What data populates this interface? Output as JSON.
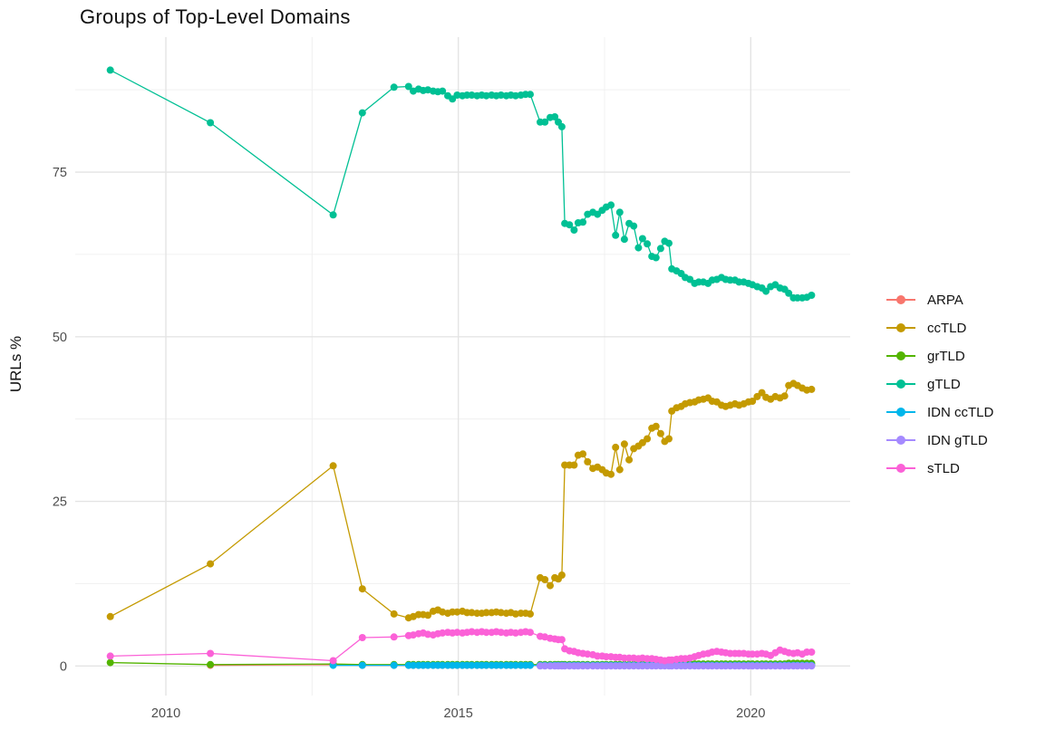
{
  "page": {
    "background": "#ffffff"
  },
  "chart_data": {
    "type": "line",
    "title": "Groups of Top-Level Domains",
    "xlabel": "",
    "ylabel": "URLs %",
    "grid": true,
    "legend_position": "right",
    "colors": {
      "major_grid": "#e4e4e4",
      "minor_grid": "#f0f0f0",
      "tick_label": "#4d4d4d"
    },
    "x_axis": {
      "range": [
        2008.45,
        2021.7
      ],
      "ticks": [
        2010,
        2015,
        2020
      ],
      "tick_labels": [
        "2010",
        "2015",
        "2020"
      ],
      "minor_ticks": [
        2012.5,
        2017.5
      ]
    },
    "y_axis": {
      "range": [
        -4.5,
        95.5
      ],
      "ticks": [
        0,
        25,
        50,
        75
      ],
      "tick_labels": [
        "0",
        "25",
        "50",
        "75"
      ],
      "minor_ticks": [
        12.5,
        37.5,
        62.5,
        87.5
      ]
    },
    "x": [
      2009.05,
      2010.76,
      2012.86,
      2013.36,
      2013.9,
      2014.15,
      2014.23,
      2014.32,
      2014.4,
      2014.48,
      2014.57,
      2014.65,
      2014.73,
      2014.82,
      2014.9,
      2014.98,
      2015.07,
      2015.15,
      2015.23,
      2015.32,
      2015.4,
      2015.48,
      2015.57,
      2015.65,
      2015.73,
      2015.82,
      2015.9,
      2015.98,
      2016.07,
      2016.15,
      2016.23,
      2016.4,
      2016.48,
      2016.57,
      2016.65,
      2016.71,
      2016.77,
      2016.82,
      2016.9,
      2016.98,
      2017.05,
      2017.13,
      2017.21,
      2017.3,
      2017.38,
      2017.46,
      2017.53,
      2017.61,
      2017.69,
      2017.76,
      2017.84,
      2017.92,
      2018.0,
      2018.08,
      2018.15,
      2018.23,
      2018.31,
      2018.38,
      2018.46,
      2018.53,
      2018.6,
      2018.65,
      2018.73,
      2018.81,
      2018.88,
      2018.96,
      2019.04,
      2019.11,
      2019.19,
      2019.27,
      2019.34,
      2019.42,
      2019.5,
      2019.57,
      2019.65,
      2019.73,
      2019.8,
      2019.88,
      2019.96,
      2020.03,
      2020.11,
      2020.19,
      2020.26,
      2020.34,
      2020.42,
      2020.5,
      2020.58,
      2020.65,
      2020.73,
      2020.8,
      2020.88,
      2020.96,
      2021.04
    ],
    "series": [
      {
        "name": "ARPA",
        "color": "#F8766D",
        "values": [
          null,
          0.1,
          0.2,
          0.1,
          0.1,
          0.1,
          0.1,
          0.1,
          0.1,
          0.1,
          0.1,
          0.1,
          0.1,
          0.1,
          0.1,
          0.1,
          0.1,
          0.1,
          0.1,
          0.1,
          0.1,
          0.1,
          0.1,
          0.1,
          0.1,
          0.1,
          0.1,
          0.1,
          0.1,
          0.1,
          0.1,
          0.1,
          0.1,
          0.1,
          0.1,
          0.1,
          0.1,
          0.1,
          0.1,
          0.1,
          0.1,
          0.1,
          0.1,
          0.1,
          0.1,
          0.1,
          0.1,
          0.1,
          0.1,
          0.1,
          0.1,
          0.1,
          0.1,
          0.1,
          0.1,
          0.1,
          0.1,
          0.1,
          0.1,
          0.1,
          0.1,
          0.1,
          0.1,
          0.1,
          0.1,
          0.1,
          0.1,
          0.1,
          0.1,
          0.1,
          0.1,
          0.1,
          0.1,
          0.1,
          0.1,
          0.1,
          0.1,
          0.1,
          0.1,
          0.1,
          0.1,
          0.1,
          0.1,
          0.1,
          0.1,
          0.1,
          0.1,
          0.1,
          0.1,
          0.1,
          0.1,
          0.1,
          0.1
        ]
      },
      {
        "name": "ccTLD",
        "color": "#C49A00",
        "values": [
          7.5,
          15.5,
          30.4,
          11.7,
          7.9,
          7.3,
          7.5,
          7.8,
          7.8,
          7.7,
          8.3,
          8.5,
          8.2,
          8.0,
          8.2,
          8.2,
          8.3,
          8.1,
          8.1,
          8.0,
          8.0,
          8.1,
          8.1,
          8.2,
          8.1,
          8.0,
          8.1,
          7.9,
          8.0,
          8.0,
          7.9,
          13.4,
          13.1,
          12.2,
          13.4,
          13.2,
          13.8,
          30.5,
          30.5,
          30.5,
          32.0,
          32.2,
          31.0,
          30.0,
          30.2,
          29.8,
          29.3,
          29.1,
          33.2,
          29.8,
          33.7,
          31.3,
          33.0,
          33.4,
          33.9,
          34.5,
          36.1,
          36.4,
          35.3,
          34.1,
          34.5,
          38.7,
          39.2,
          39.4,
          39.8,
          40.0,
          40.1,
          40.4,
          40.5,
          40.7,
          40.2,
          40.1,
          39.6,
          39.4,
          39.6,
          39.8,
          39.6,
          39.8,
          40.1,
          40.2,
          40.9,
          41.5,
          40.8,
          40.5,
          40.9,
          40.7,
          41.0,
          42.6,
          42.9,
          42.6,
          42.2,
          41.9,
          42.0
        ]
      },
      {
        "name": "grTLD",
        "color": "#53B400",
        "values": [
          0.5,
          0.2,
          0.3,
          0.2,
          0.2,
          0.2,
          0.2,
          0.2,
          0.2,
          0.2,
          0.2,
          0.2,
          0.2,
          0.2,
          0.2,
          0.2,
          0.2,
          0.2,
          0.2,
          0.2,
          0.2,
          0.2,
          0.2,
          0.2,
          0.2,
          0.2,
          0.2,
          0.2,
          0.2,
          0.2,
          0.2,
          0.2,
          0.2,
          0.2,
          0.2,
          0.2,
          0.2,
          0.2,
          0.2,
          0.2,
          0.2,
          0.2,
          0.2,
          0.2,
          0.2,
          0.2,
          0.2,
          0.2,
          0.2,
          0.2,
          0.2,
          0.2,
          0.2,
          0.2,
          0.2,
          0.2,
          0.2,
          0.3,
          0.3,
          0.3,
          0.3,
          0.3,
          0.3,
          0.3,
          0.3,
          0.3,
          0.3,
          0.3,
          0.3,
          0.3,
          0.3,
          0.3,
          0.3,
          0.3,
          0.3,
          0.3,
          0.3,
          0.3,
          0.3,
          0.3,
          0.3,
          0.3,
          0.3,
          0.3,
          0.3,
          0.3,
          0.3,
          0.4,
          0.4,
          0.4,
          0.4,
          0.4,
          0.4
        ]
      },
      {
        "name": "gTLD",
        "color": "#00C094",
        "values": [
          90.5,
          82.5,
          68.5,
          84.0,
          87.9,
          88.0,
          87.3,
          87.6,
          87.4,
          87.5,
          87.3,
          87.2,
          87.3,
          86.6,
          86.1,
          86.7,
          86.6,
          86.7,
          86.7,
          86.6,
          86.7,
          86.6,
          86.7,
          86.6,
          86.7,
          86.6,
          86.7,
          86.6,
          86.7,
          86.8,
          86.8,
          82.6,
          82.6,
          83.3,
          83.4,
          82.6,
          81.9,
          67.2,
          67.0,
          66.2,
          67.3,
          67.4,
          68.6,
          68.9,
          68.6,
          69.2,
          69.7,
          70.0,
          65.4,
          68.9,
          64.8,
          67.2,
          66.8,
          63.5,
          64.9,
          64.1,
          62.2,
          62.0,
          63.4,
          64.5,
          64.2,
          60.3,
          60.0,
          59.6,
          59.0,
          58.7,
          58.1,
          58.3,
          58.3,
          58.1,
          58.6,
          58.7,
          59.0,
          58.7,
          58.6,
          58.6,
          58.3,
          58.3,
          58.1,
          57.9,
          57.6,
          57.4,
          56.9,
          57.6,
          57.9,
          57.4,
          57.2,
          56.6,
          55.9,
          55.9,
          55.9,
          56.0,
          56.3
        ]
      },
      {
        "name": "IDN ccTLD",
        "color": "#00B6EB",
        "values": [
          null,
          null,
          0.1,
          0.1,
          0.1,
          0.1,
          0.1,
          0.1,
          0.1,
          0.1,
          0.1,
          0.1,
          0.1,
          0.1,
          0.1,
          0.1,
          0.1,
          0.1,
          0.1,
          0.1,
          0.1,
          0.1,
          0.1,
          0.1,
          0.1,
          0.1,
          0.1,
          0.1,
          0.1,
          0.1,
          0.1,
          0.1,
          0.1,
          0.1,
          0.1,
          0.1,
          0.1,
          0.1,
          0.1,
          0.1,
          0.1,
          0.1,
          0.1,
          0.1,
          0.1,
          0.1,
          0.1,
          0.1,
          0.1,
          0.1,
          0.1,
          0.1,
          0.1,
          0.1,
          0.1,
          0.1,
          0.1,
          0.1,
          0.1,
          0.1,
          0.1,
          0.1,
          0.1,
          0.1,
          0.1,
          0.1,
          0.1,
          0.1,
          0.1,
          0.1,
          0.1,
          0.1,
          0.1,
          0.1,
          0.1,
          0.1,
          0.1,
          0.1,
          0.1,
          0.1,
          0.1,
          0.1,
          0.1,
          0.1,
          0.1,
          0.1,
          0.1,
          0.1,
          0.1,
          0.1,
          0.1,
          0.1,
          0.1
        ]
      },
      {
        "name": "IDN gTLD",
        "color": "#A58AFF",
        "values": [
          null,
          null,
          null,
          null,
          null,
          null,
          null,
          null,
          null,
          null,
          null,
          null,
          null,
          null,
          null,
          null,
          null,
          null,
          null,
          null,
          null,
          null,
          null,
          null,
          null,
          null,
          null,
          null,
          null,
          null,
          null,
          0.0,
          0.0,
          0.0,
          0.0,
          0.0,
          0.0,
          0.0,
          0.0,
          0.0,
          0.0,
          0.0,
          0.0,
          0.0,
          0.0,
          0.0,
          0.0,
          0.0,
          0.0,
          0.0,
          0.0,
          0.0,
          0.0,
          0.0,
          0.0,
          0.0,
          0.0,
          0.0,
          0.0,
          0.0,
          0.0,
          0.0,
          0.0,
          0.0,
          0.0,
          0.0,
          0.0,
          0.0,
          0.0,
          0.0,
          0.0,
          0.0,
          0.0,
          0.0,
          0.0,
          0.0,
          0.0,
          0.0,
          0.0,
          0.0,
          0.0,
          0.0,
          0.0,
          0.0,
          0.0,
          0.0,
          0.0,
          0.0,
          0.0,
          0.0,
          0.0,
          0.0,
          0.0
        ]
      },
      {
        "name": "sTLD",
        "color": "#FB61D7",
        "values": [
          1.5,
          1.9,
          0.8,
          4.3,
          4.4,
          4.6,
          4.7,
          4.9,
          5.0,
          4.8,
          4.7,
          4.9,
          5.0,
          5.1,
          5.0,
          5.1,
          5.0,
          5.1,
          5.2,
          5.1,
          5.2,
          5.1,
          5.1,
          5.2,
          5.1,
          5.0,
          5.1,
          5.0,
          5.1,
          5.2,
          5.1,
          4.5,
          4.4,
          4.2,
          4.1,
          4.0,
          4.0,
          2.6,
          2.3,
          2.2,
          2.0,
          1.9,
          1.8,
          1.7,
          1.5,
          1.5,
          1.4,
          1.4,
          1.3,
          1.3,
          1.2,
          1.2,
          1.2,
          1.1,
          1.2,
          1.1,
          1.1,
          1.0,
          0.9,
          0.8,
          0.9,
          0.9,
          1.0,
          1.1,
          1.1,
          1.2,
          1.4,
          1.6,
          1.8,
          1.9,
          2.1,
          2.2,
          2.1,
          2.0,
          1.9,
          1.9,
          1.9,
          1.9,
          1.8,
          1.8,
          1.8,
          1.9,
          1.8,
          1.6,
          2.0,
          2.4,
          2.2,
          2.0,
          1.9,
          2.0,
          1.8,
          2.1,
          2.1
        ]
      }
    ]
  }
}
